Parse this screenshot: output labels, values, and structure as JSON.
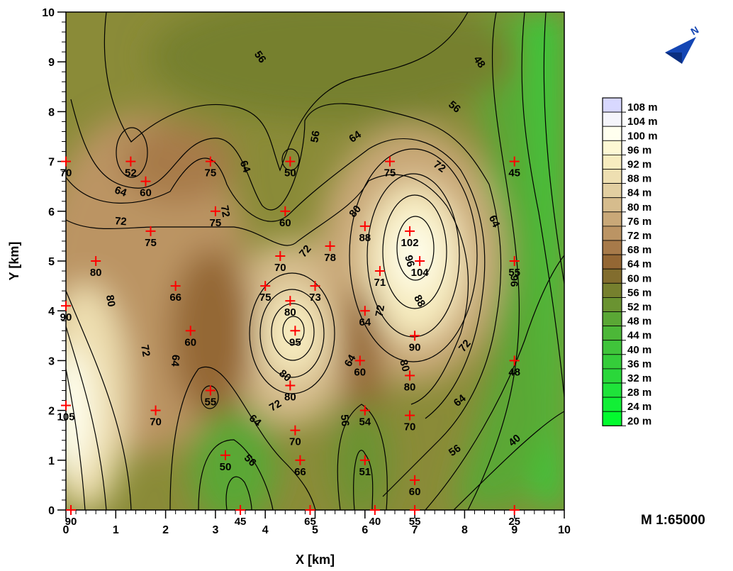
{
  "chart_data": {
    "type": "contour",
    "xlabel": "X [km]",
    "ylabel": "Y [km]",
    "xlim": [
      0,
      10
    ],
    "ylim": [
      0,
      10
    ],
    "x_ticks": [
      "0",
      "1",
      "2",
      "3",
      "4",
      "5",
      "6",
      "7",
      "8",
      "9",
      "10"
    ],
    "y_ticks": [
      "0",
      "1",
      "2",
      "3",
      "4",
      "5",
      "6",
      "7",
      "8",
      "9",
      "10"
    ],
    "samples": [
      {
        "x": 0.1,
        "y": 0.0,
        "v": "90"
      },
      {
        "x": 3.5,
        "y": 0.0,
        "v": "45"
      },
      {
        "x": 4.9,
        "y": 0.0,
        "v": "65"
      },
      {
        "x": 6.2,
        "y": 0.0,
        "v": "40"
      },
      {
        "x": 7.0,
        "y": 0.0,
        "v": "55"
      },
      {
        "x": 9.0,
        "y": 0.0,
        "v": "25"
      },
      {
        "x": 3.2,
        "y": 1.1,
        "v": "50"
      },
      {
        "x": 4.7,
        "y": 1.0,
        "v": "66"
      },
      {
        "x": 6.0,
        "y": 1.0,
        "v": "51"
      },
      {
        "x": 7.0,
        "y": 0.6,
        "v": "60"
      },
      {
        "x": 0.0,
        "y": 2.1,
        "v": "105"
      },
      {
        "x": 1.8,
        "y": 2.0,
        "v": "70"
      },
      {
        "x": 2.9,
        "y": 2.4,
        "v": "55"
      },
      {
        "x": 4.5,
        "y": 2.5,
        "v": "80"
      },
      {
        "x": 4.6,
        "y": 1.6,
        "v": "70"
      },
      {
        "x": 6.0,
        "y": 2.0,
        "v": "54"
      },
      {
        "x": 6.9,
        "y": 1.9,
        "v": "70"
      },
      {
        "x": 5.9,
        "y": 3.0,
        "v": "60"
      },
      {
        "x": 6.9,
        "y": 2.7,
        "v": "80"
      },
      {
        "x": 9.0,
        "y": 3.0,
        "v": "48"
      },
      {
        "x": 2.5,
        "y": 3.6,
        "v": "60"
      },
      {
        "x": 4.6,
        "y": 3.6,
        "v": "95"
      },
      {
        "x": 7.0,
        "y": 3.5,
        "v": "90"
      },
      {
        "x": 0.0,
        "y": 4.1,
        "v": "90"
      },
      {
        "x": 2.2,
        "y": 4.5,
        "v": "66"
      },
      {
        "x": 4.0,
        "y": 4.5,
        "v": "75"
      },
      {
        "x": 4.5,
        "y": 4.2,
        "v": "80"
      },
      {
        "x": 5.0,
        "y": 4.5,
        "v": "73"
      },
      {
        "x": 6.0,
        "y": 4.0,
        "v": "64"
      },
      {
        "x": 0.6,
        "y": 5.0,
        "v": "80"
      },
      {
        "x": 4.3,
        "y": 5.1,
        "v": "70"
      },
      {
        "x": 5.3,
        "y": 5.3,
        "v": "78"
      },
      {
        "x": 6.3,
        "y": 4.8,
        "v": "71"
      },
      {
        "x": 7.1,
        "y": 5.0,
        "v": "104"
      },
      {
        "x": 9.0,
        "y": 5.0,
        "v": "55"
      },
      {
        "x": 1.7,
        "y": 5.6,
        "v": "75"
      },
      {
        "x": 6.0,
        "y": 5.7,
        "v": "88"
      },
      {
        "x": 6.9,
        "y": 5.6,
        "v": "102"
      },
      {
        "x": 3.0,
        "y": 6.0,
        "v": "75"
      },
      {
        "x": 4.4,
        "y": 6.0,
        "v": "60"
      },
      {
        "x": 0.0,
        "y": 7.0,
        "v": "70"
      },
      {
        "x": 1.3,
        "y": 7.0,
        "v": "52"
      },
      {
        "x": 1.6,
        "y": 6.6,
        "v": "60"
      },
      {
        "x": 2.9,
        "y": 7.0,
        "v": "75"
      },
      {
        "x": 4.5,
        "y": 7.0,
        "v": "50"
      },
      {
        "x": 6.5,
        "y": 7.0,
        "v": "75"
      },
      {
        "x": 9.0,
        "y": 7.0,
        "v": "45"
      }
    ],
    "contour_labels": [
      {
        "x": 3.9,
        "y": 9.1,
        "v": "56",
        "rot": 55
      },
      {
        "x": 8.3,
        "y": 9.0,
        "v": "48",
        "rot": 55
      },
      {
        "x": 7.8,
        "y": 8.1,
        "v": "56",
        "rot": 40
      },
      {
        "x": 5.0,
        "y": 7.5,
        "v": "56",
        "rot": -80
      },
      {
        "x": 5.8,
        "y": 7.5,
        "v": "64",
        "rot": -35
      },
      {
        "x": 7.5,
        "y": 6.9,
        "v": "72",
        "rot": 35
      },
      {
        "x": 1.1,
        "y": 6.4,
        "v": "64",
        "rot": 20
      },
      {
        "x": 3.6,
        "y": 6.9,
        "v": "64",
        "rot": 70
      },
      {
        "x": 3.2,
        "y": 6.0,
        "v": "72",
        "rot": 80
      },
      {
        "x": 1.1,
        "y": 5.8,
        "v": "72",
        "rot": 5
      },
      {
        "x": 5.8,
        "y": 6.0,
        "v": "80",
        "rot": -50
      },
      {
        "x": 8.6,
        "y": 5.8,
        "v": "64",
        "rot": 65
      },
      {
        "x": 4.8,
        "y": 5.2,
        "v": "72",
        "rot": -50
      },
      {
        "x": 6.9,
        "y": 5.0,
        "v": "96",
        "rot": 75
      },
      {
        "x": 9.0,
        "y": 4.6,
        "v": "96",
        "rot": 90
      },
      {
        "x": 0.9,
        "y": 4.2,
        "v": "80",
        "rot": 80
      },
      {
        "x": 7.1,
        "y": 4.2,
        "v": "88",
        "rot": 60
      },
      {
        "x": 6.3,
        "y": 4.0,
        "v": "72",
        "rot": -80
      },
      {
        "x": 1.6,
        "y": 3.2,
        "v": "72",
        "rot": 80
      },
      {
        "x": 2.2,
        "y": 3.0,
        "v": "64",
        "rot": 95
      },
      {
        "x": 5.7,
        "y": 3.0,
        "v": "64",
        "rot": -60
      },
      {
        "x": 6.8,
        "y": 2.9,
        "v": "80",
        "rot": 75
      },
      {
        "x": 8.0,
        "y": 3.3,
        "v": "72",
        "rot": -50
      },
      {
        "x": 4.4,
        "y": 2.7,
        "v": "80",
        "rot": 40
      },
      {
        "x": 4.2,
        "y": 2.1,
        "v": "72",
        "rot": -30
      },
      {
        "x": 3.8,
        "y": 1.8,
        "v": "64",
        "rot": 40
      },
      {
        "x": 5.6,
        "y": 1.8,
        "v": "56",
        "rot": 85
      },
      {
        "x": 7.9,
        "y": 2.2,
        "v": "64",
        "rot": -40
      },
      {
        "x": 3.7,
        "y": 1.0,
        "v": "56",
        "rot": 45
      },
      {
        "x": 7.8,
        "y": 1.2,
        "v": "56",
        "rot": -35
      },
      {
        "x": 9.0,
        "y": 1.4,
        "v": "40",
        "rot": -40
      }
    ],
    "legend": {
      "levels": [
        "108 m",
        "104 m",
        "100 m",
        "96 m",
        "92 m",
        "88 m",
        "84 m",
        "80 m",
        "76 m",
        "72 m",
        "68 m",
        "64 m",
        "60 m",
        "56 m",
        "52 m",
        "48 m",
        "44 m",
        "40 m",
        "36 m",
        "32 m",
        "28 m",
        "24 m",
        "20 m"
      ],
      "colors": [
        "#d8d8ff",
        "#f5f5fb",
        "#ffffef",
        "#fdf8d4",
        "#f7ecbf",
        "#eedfb1",
        "#e2cfa1",
        "#d6bc8d",
        "#c9a878",
        "#bb9464",
        "#a77a4a",
        "#946734",
        "#826d2e",
        "#76802e",
        "#6a9331",
        "#5aa735",
        "#4cb738",
        "#40c43b",
        "#35cd3a",
        "#2ad73a",
        "#1fe33a",
        "#12ef36",
        "#03fa2e"
      ],
      "fill": "#03fa2e"
    }
  },
  "scale_label": "M 1:65000",
  "north_arrow": {
    "icon": "north-arrow-icon",
    "letter": "N"
  }
}
